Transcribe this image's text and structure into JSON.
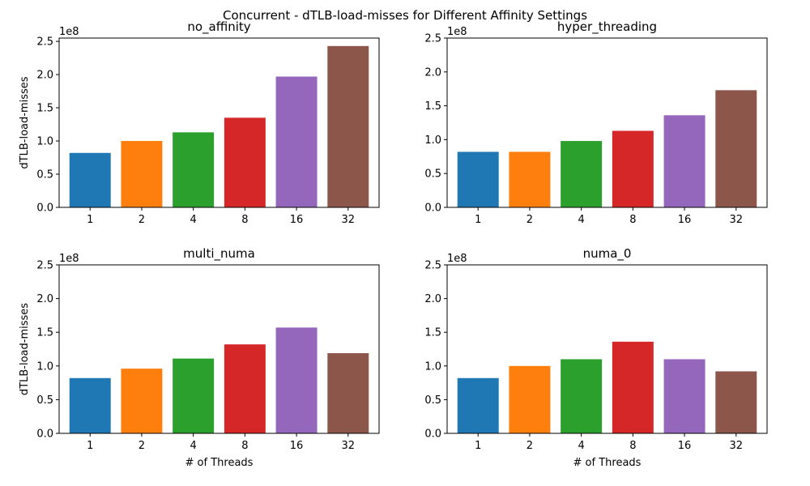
{
  "title": "Concurrent - dTLB-load-misses for Different Affinity Settings",
  "chart_data": [
    {
      "type": "bar",
      "title": "no_affinity",
      "categories": [
        "1",
        "2",
        "4",
        "8",
        "16",
        "32"
      ],
      "values": [
        82000000,
        100000000,
        113000000,
        135000000,
        197000000,
        243000000
      ],
      "colors": [
        "#1f77b4",
        "#ff7f0e",
        "#2ca02c",
        "#d62728",
        "#9467bd",
        "#8c564b"
      ],
      "ylim": [
        0,
        255000000
      ],
      "yticks": [
        "0.0",
        "0.5",
        "1.0",
        "1.5",
        "2.0",
        "2.5"
      ],
      "ytick_values": [
        0,
        50000000,
        100000000,
        150000000,
        200000000,
        250000000
      ],
      "offset_text": "1e8",
      "xlabel": "",
      "ylabel": "dTLB-load-misses"
    },
    {
      "type": "bar",
      "title": "hyper_threading",
      "categories": [
        "1",
        "2",
        "4",
        "8",
        "16",
        "32"
      ],
      "values": [
        82000000,
        82000000,
        98000000,
        113000000,
        136000000,
        173000000
      ],
      "colors": [
        "#1f77b4",
        "#ff7f0e",
        "#2ca02c",
        "#d62728",
        "#9467bd",
        "#8c564b"
      ],
      "ylim": [
        0,
        250000000
      ],
      "yticks": [
        "0.0",
        "0.5",
        "1.0",
        "1.5",
        "2.0",
        "2.5"
      ],
      "ytick_values": [
        0,
        50000000,
        100000000,
        150000000,
        200000000,
        250000000
      ],
      "offset_text": "1e8",
      "xlabel": "",
      "ylabel": ""
    },
    {
      "type": "bar",
      "title": "multi_numa",
      "categories": [
        "1",
        "2",
        "4",
        "8",
        "16",
        "32"
      ],
      "values": [
        82000000,
        96000000,
        111000000,
        132000000,
        157000000,
        119000000
      ],
      "colors": [
        "#1f77b4",
        "#ff7f0e",
        "#2ca02c",
        "#d62728",
        "#9467bd",
        "#8c564b"
      ],
      "ylim": [
        0,
        250000000
      ],
      "yticks": [
        "0.0",
        "0.5",
        "1.0",
        "1.5",
        "2.0",
        "2.5"
      ],
      "ytick_values": [
        0,
        50000000,
        100000000,
        150000000,
        200000000,
        250000000
      ],
      "offset_text": "1e8",
      "xlabel": "# of Threads",
      "ylabel": "dTLB-load-misses"
    },
    {
      "type": "bar",
      "title": "numa_0",
      "categories": [
        "1",
        "2",
        "4",
        "8",
        "16",
        "32"
      ],
      "values": [
        82000000,
        100000000,
        110000000,
        136000000,
        110000000,
        92000000
      ],
      "colors": [
        "#1f77b4",
        "#ff7f0e",
        "#2ca02c",
        "#d62728",
        "#9467bd",
        "#8c564b"
      ],
      "ylim": [
        0,
        250000000
      ],
      "yticks": [
        "0.0",
        "0.5",
        "1.0",
        "1.5",
        "2.0",
        "2.5"
      ],
      "ytick_values": [
        0,
        50000000,
        100000000,
        150000000,
        200000000,
        250000000
      ],
      "offset_text": "1e8",
      "xlabel": "# of Threads",
      "ylabel": ""
    }
  ]
}
